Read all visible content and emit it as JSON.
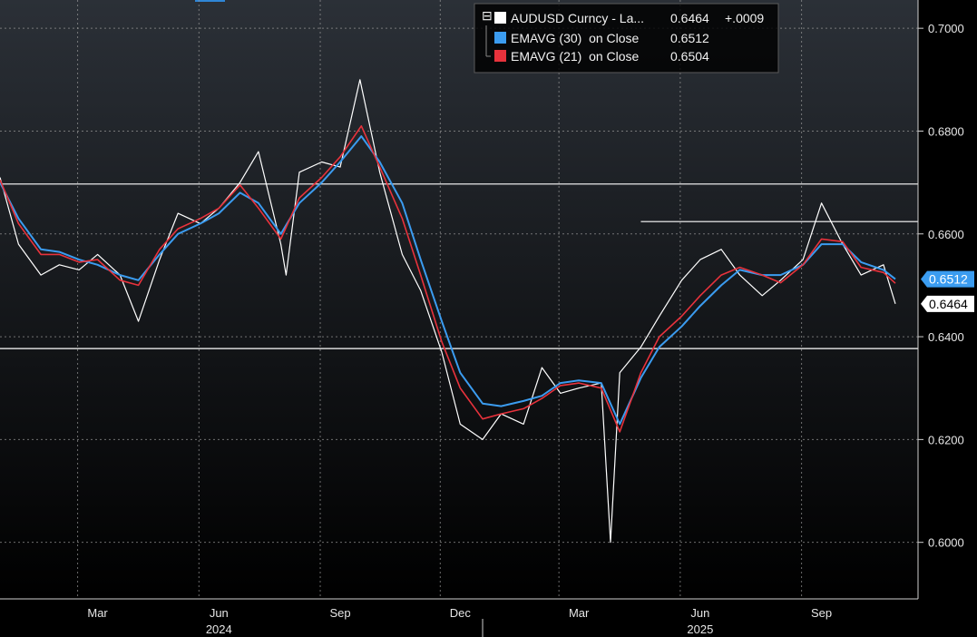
{
  "chart_data": {
    "type": "line",
    "ylim": [
      0.589,
      0.7055
    ],
    "y_ticks": [
      "0.6000",
      "0.6200",
      "0.6400",
      "0.6600",
      "0.6800",
      "0.7000"
    ],
    "x_month_ticks": [
      "Mar",
      "Jun",
      "Sep",
      "Dec",
      "Mar",
      "Jun",
      "Sep"
    ],
    "x_year_labels": [
      "2024",
      "2025"
    ],
    "horizontal_lines": [
      0.6697,
      0.6377,
      0.6624
    ],
    "legend": [
      {
        "label": "AUDUSD Curncy - La...",
        "value": "0.6464",
        "change": "+.0009",
        "color": "#ffffff"
      },
      {
        "label": "EMAVG (30)  on Close",
        "value": "0.6512",
        "color": "#3b9cf0"
      },
      {
        "label": "EMAVG (21)  on Close",
        "value": "0.6504",
        "color": "#e8323c"
      }
    ],
    "last_value_tags": [
      {
        "value": "0.6512",
        "color": "#3b9cf0"
      },
      {
        "value": "0.6464",
        "color": "#ffffff"
      }
    ],
    "series": [
      {
        "name": "AUDUSD Curncy",
        "color": "#ffffff",
        "x": [
          "2024-01-01",
          "2024-01-15",
          "2024-02-01",
          "2024-02-15",
          "2024-03-01",
          "2024-03-15",
          "2024-04-01",
          "2024-04-15",
          "2024-05-01",
          "2024-05-15",
          "2024-06-01",
          "2024-06-15",
          "2024-07-01",
          "2024-07-15",
          "2024-08-01",
          "2024-08-05",
          "2024-08-15",
          "2024-09-01",
          "2024-09-15",
          "2024-09-30",
          "2024-10-15",
          "2024-11-01",
          "2024-11-15",
          "2024-12-01",
          "2024-12-15",
          "2025-01-01",
          "2025-01-15",
          "2025-02-01",
          "2025-02-15",
          "2025-03-01",
          "2025-03-15",
          "2025-04-01",
          "2025-04-08",
          "2025-04-15",
          "2025-05-01",
          "2025-05-15",
          "2025-06-01",
          "2025-06-15",
          "2025-07-01",
          "2025-07-15",
          "2025-08-01",
          "2025-08-15",
          "2025-09-01",
          "2025-09-15",
          "2025-10-01",
          "2025-10-15",
          "2025-11-01",
          "2025-11-10"
        ],
        "values": [
          0.671,
          0.658,
          0.652,
          0.654,
          0.653,
          0.656,
          0.652,
          0.643,
          0.655,
          0.664,
          0.662,
          0.665,
          0.67,
          0.676,
          0.658,
          0.652,
          0.672,
          0.674,
          0.673,
          0.69,
          0.672,
          0.656,
          0.649,
          0.637,
          0.623,
          0.62,
          0.625,
          0.623,
          0.634,
          0.629,
          0.63,
          0.631,
          0.6,
          0.633,
          0.638,
          0.644,
          0.651,
          0.655,
          0.657,
          0.652,
          0.648,
          0.651,
          0.655,
          0.666,
          0.658,
          0.652,
          0.654,
          0.6464
        ]
      },
      {
        "name": "EMAVG (30) on Close",
        "color": "#3b9cf0",
        "x": [
          "2024-01-01",
          "2024-01-15",
          "2024-02-01",
          "2024-02-15",
          "2024-03-01",
          "2024-03-15",
          "2024-04-01",
          "2024-04-15",
          "2024-05-01",
          "2024-05-15",
          "2024-06-01",
          "2024-06-15",
          "2024-07-01",
          "2024-07-15",
          "2024-08-01",
          "2024-08-15",
          "2024-09-01",
          "2024-09-15",
          "2024-10-01",
          "2024-10-15",
          "2024-11-01",
          "2024-11-15",
          "2024-12-01",
          "2024-12-15",
          "2025-01-01",
          "2025-01-15",
          "2025-02-01",
          "2025-02-15",
          "2025-03-01",
          "2025-03-15",
          "2025-04-01",
          "2025-04-15",
          "2025-05-01",
          "2025-05-15",
          "2025-06-01",
          "2025-06-15",
          "2025-07-01",
          "2025-07-15",
          "2025-08-01",
          "2025-08-15",
          "2025-09-01",
          "2025-09-15",
          "2025-10-01",
          "2025-10-15",
          "2025-11-01",
          "2025-11-10"
        ],
        "values": [
          0.67,
          0.663,
          0.657,
          0.6565,
          0.655,
          0.654,
          0.652,
          0.651,
          0.656,
          0.66,
          0.662,
          0.664,
          0.668,
          0.666,
          0.66,
          0.666,
          0.67,
          0.674,
          0.679,
          0.674,
          0.666,
          0.655,
          0.643,
          0.633,
          0.627,
          0.6265,
          0.6275,
          0.6285,
          0.631,
          0.6315,
          0.631,
          0.623,
          0.632,
          0.638,
          0.642,
          0.646,
          0.65,
          0.653,
          0.652,
          0.652,
          0.654,
          0.658,
          0.658,
          0.6545,
          0.653,
          0.6512
        ]
      },
      {
        "name": "EMAVG (21) on Close",
        "color": "#e8323c",
        "x": [
          "2024-01-01",
          "2024-01-15",
          "2024-02-01",
          "2024-02-15",
          "2024-03-01",
          "2024-03-15",
          "2024-04-01",
          "2024-04-15",
          "2024-05-01",
          "2024-05-15",
          "2024-06-01",
          "2024-06-15",
          "2024-07-01",
          "2024-07-15",
          "2024-08-01",
          "2024-08-15",
          "2024-09-01",
          "2024-09-15",
          "2024-10-01",
          "2024-10-15",
          "2024-11-01",
          "2024-11-15",
          "2024-12-01",
          "2024-12-15",
          "2025-01-01",
          "2025-01-15",
          "2025-02-01",
          "2025-02-15",
          "2025-03-01",
          "2025-03-15",
          "2025-04-01",
          "2025-04-15",
          "2025-05-01",
          "2025-05-15",
          "2025-06-01",
          "2025-06-15",
          "2025-07-01",
          "2025-07-15",
          "2025-08-01",
          "2025-08-15",
          "2025-09-01",
          "2025-09-15",
          "2025-10-01",
          "2025-10-15",
          "2025-11-01",
          "2025-11-10"
        ],
        "values": [
          0.6705,
          0.662,
          0.656,
          0.656,
          0.6545,
          0.655,
          0.651,
          0.65,
          0.657,
          0.661,
          0.663,
          0.665,
          0.6695,
          0.665,
          0.659,
          0.667,
          0.671,
          0.675,
          0.681,
          0.673,
          0.663,
          0.652,
          0.639,
          0.63,
          0.624,
          0.625,
          0.626,
          0.628,
          0.6305,
          0.631,
          0.63,
          0.6215,
          0.633,
          0.64,
          0.644,
          0.648,
          0.652,
          0.6535,
          0.652,
          0.6505,
          0.654,
          0.659,
          0.6585,
          0.6535,
          0.6525,
          0.6504
        ]
      }
    ]
  }
}
